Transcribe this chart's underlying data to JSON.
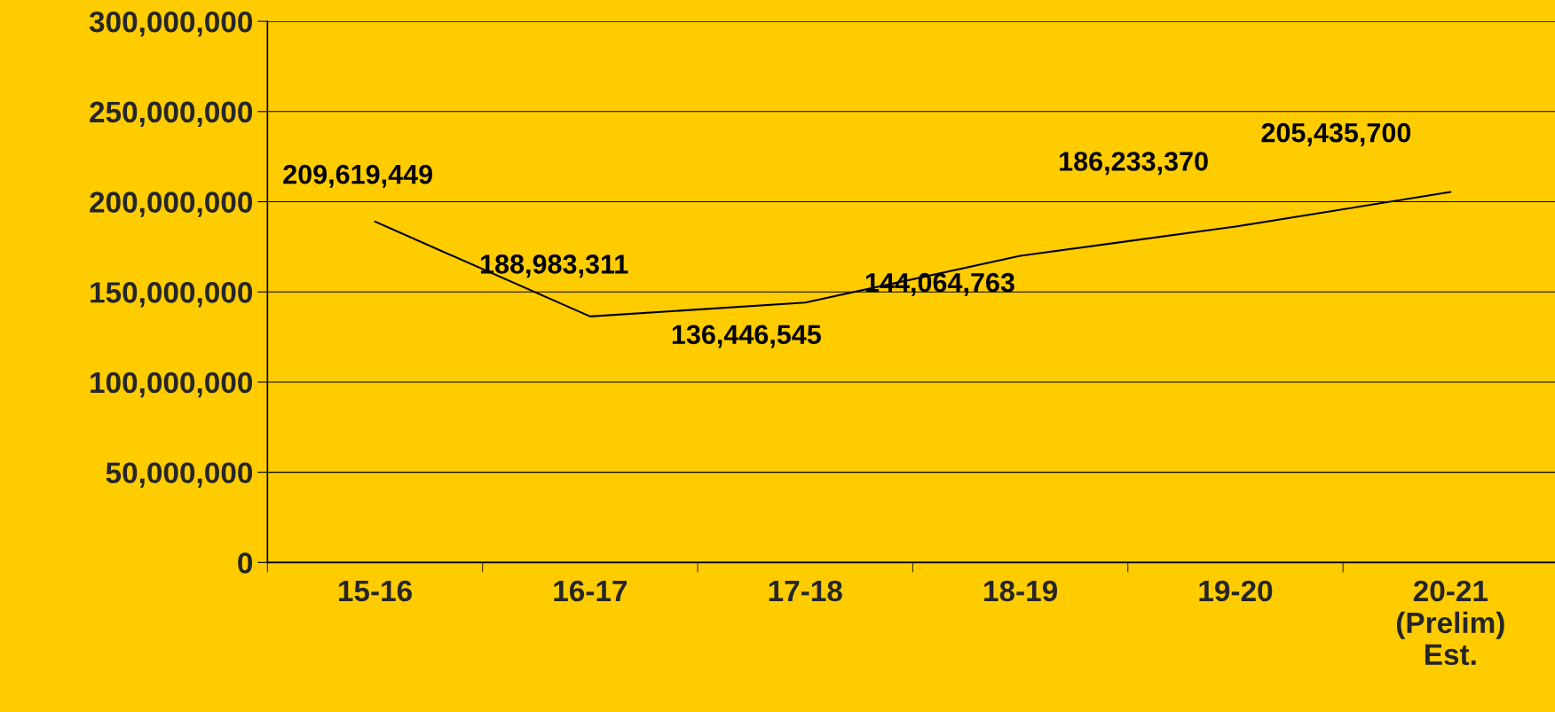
{
  "chart_data": {
    "type": "line",
    "categories": [
      "15-16",
      "16-17",
      "17-18",
      "18-19",
      "19-20",
      "20-21\n(Prelim)\nEst."
    ],
    "values": [
      189000000,
      136400000,
      144100000,
      170000000,
      186200000,
      205400000
    ],
    "color": "#000000",
    "ylim": [
      0,
      300000000
    ],
    "yticks": [
      {
        "value": 0,
        "label": "0"
      },
      {
        "value": 50000000,
        "label": "50,000,000"
      },
      {
        "value": 100000000,
        "label": "100,000,000"
      },
      {
        "value": 150000000,
        "label": "150,000,000"
      },
      {
        "value": 200000000,
        "label": "200,000,000"
      },
      {
        "value": 250000000,
        "label": "250,000,000"
      },
      {
        "value": 300000000,
        "label": "300,000,000"
      }
    ],
    "grid": "y",
    "annotations": [
      "209,619,449",
      "188,983,311",
      "136,446,545",
      "144,064,763",
      "186,233,370",
      "205,435,700"
    ]
  }
}
